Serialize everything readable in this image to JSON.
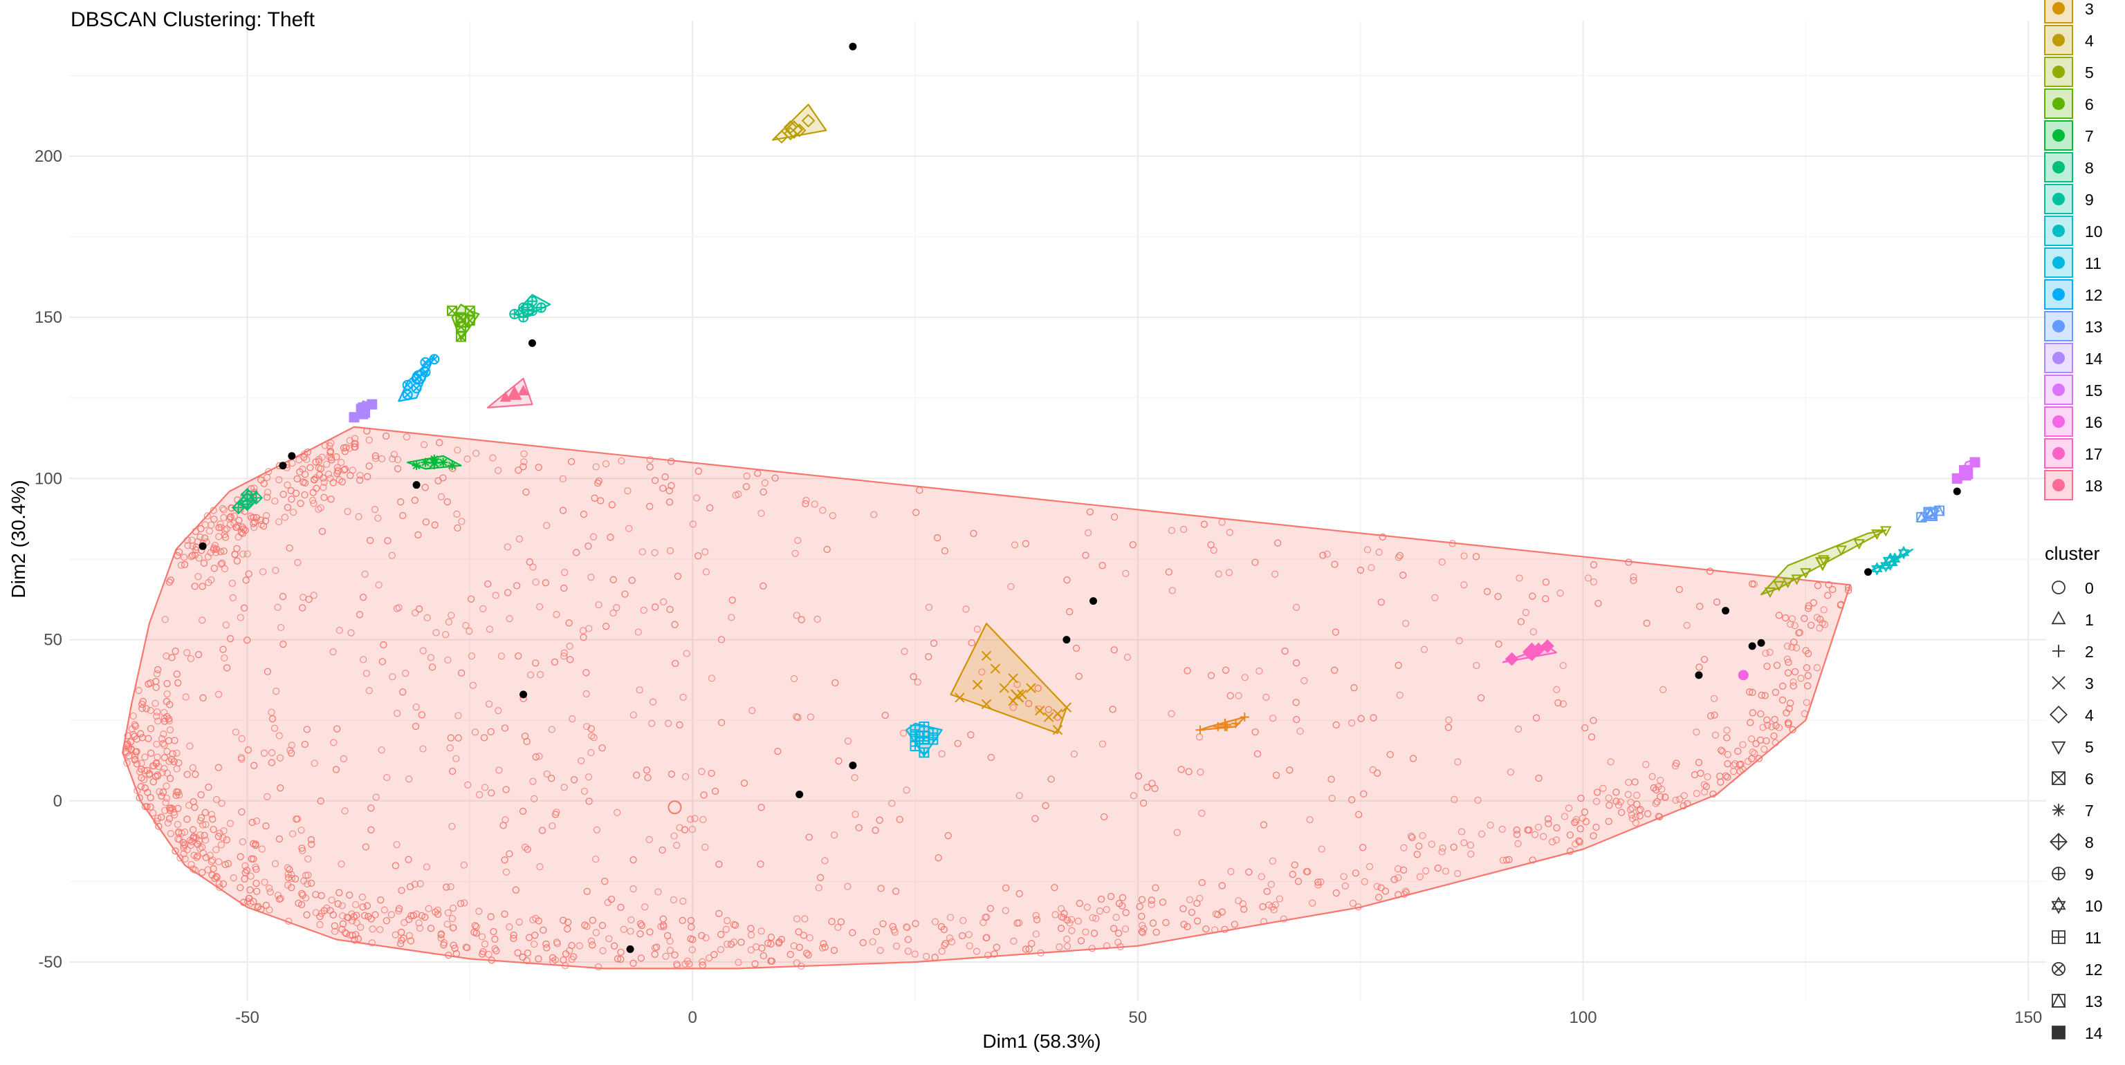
{
  "chart_data": {
    "type": "scatter",
    "title": "DBSCAN Clustering: Theft",
    "xlabel": "Dim1 (58.3%)",
    "ylabel": "Dim2 (30.4%)",
    "xlim": [
      -70,
      152
    ],
    "ylim": [
      -62,
      242
    ],
    "x_ticks": [
      -50,
      0,
      50,
      100,
      150
    ],
    "y_ticks": [
      -50,
      0,
      50,
      100,
      150,
      200
    ],
    "grid": true,
    "legend_position": "right",
    "cluster_colors": {
      "1": "#F8766D",
      "2": "#E7861B",
      "3": "#D39200",
      "4": "#BB9D00",
      "5": "#93AA00",
      "6": "#5EB300",
      "7": "#00BA38",
      "8": "#00BF74",
      "9": "#00C19F",
      "10": "#00BFC4",
      "11": "#00B9E3",
      "12": "#00ADFA",
      "13": "#619CFF",
      "14": "#AE87FF",
      "15": "#DB72FB",
      "16": "#F564E3",
      "17": "#FF61C3",
      "18": "#FF6C91"
    },
    "fill_legend": {
      "title": "",
      "entries": [
        {
          "label": "3",
          "color": "#D39200"
        },
        {
          "label": "4",
          "color": "#BB9D00"
        },
        {
          "label": "5",
          "color": "#93AA00"
        },
        {
          "label": "6",
          "color": "#5EB300"
        },
        {
          "label": "7",
          "color": "#00BA38"
        },
        {
          "label": "8",
          "color": "#00BF74"
        },
        {
          "label": "9",
          "color": "#00C19F"
        },
        {
          "label": "10",
          "color": "#00BFC4"
        },
        {
          "label": "11",
          "color": "#00B9E3"
        },
        {
          "label": "12",
          "color": "#00ADFA"
        },
        {
          "label": "13",
          "color": "#619CFF"
        },
        {
          "label": "14",
          "color": "#AE87FF"
        },
        {
          "label": "15",
          "color": "#DB72FB"
        },
        {
          "label": "16",
          "color": "#F564E3"
        },
        {
          "label": "17",
          "color": "#FF61C3"
        },
        {
          "label": "18",
          "color": "#FF6C91"
        }
      ]
    },
    "shape_legend": {
      "title": "cluster",
      "entries": [
        {
          "label": "0",
          "shape": "circle-open"
        },
        {
          "label": "1",
          "shape": "triangle-open"
        },
        {
          "label": "2",
          "shape": "plus"
        },
        {
          "label": "3",
          "shape": "cross"
        },
        {
          "label": "4",
          "shape": "diamond-open"
        },
        {
          "label": "5",
          "shape": "triangle-down-open"
        },
        {
          "label": "6",
          "shape": "square-cross"
        },
        {
          "label": "7",
          "shape": "asterisk"
        },
        {
          "label": "8",
          "shape": "diamond-plus"
        },
        {
          "label": "9",
          "shape": "circle-plus"
        },
        {
          "label": "10",
          "shape": "star-of-david"
        },
        {
          "label": "11",
          "shape": "square-plus"
        },
        {
          "label": "12",
          "shape": "circle-cross"
        },
        {
          "label": "13",
          "shape": "square-triangle"
        },
        {
          "label": "14",
          "shape": "square-filled"
        }
      ]
    },
    "hulls": [
      {
        "cluster": 1,
        "color": "#F8766D",
        "points": [
          [
            -63,
            30
          ],
          [
            -64,
            15
          ],
          [
            -62,
            0
          ],
          [
            -57,
            -20
          ],
          [
            -50,
            -33
          ],
          [
            -40,
            -43
          ],
          [
            -25,
            -49
          ],
          [
            -10,
            -52
          ],
          [
            5,
            -52
          ],
          [
            25,
            -50
          ],
          [
            50,
            -45
          ],
          [
            75,
            -33
          ],
          [
            100,
            -15
          ],
          [
            115,
            2
          ],
          [
            125,
            25
          ],
          [
            130,
            67
          ],
          [
            -38,
            116
          ],
          [
            -52,
            96
          ],
          [
            -58,
            78
          ],
          [
            -61,
            55
          ]
        ]
      },
      {
        "cluster": 2,
        "color": "#E7861B",
        "points": [
          [
            57,
            22
          ],
          [
            61,
            23
          ],
          [
            62,
            26
          ],
          [
            58,
            23
          ]
        ]
      },
      {
        "cluster": 3,
        "color": "#D39200",
        "points": [
          [
            29,
            33
          ],
          [
            33,
            55
          ],
          [
            42,
            29
          ],
          [
            41,
            21
          ]
        ]
      },
      {
        "cluster": 4,
        "color": "#BB9D00",
        "points": [
          [
            9,
            205
          ],
          [
            13,
            216
          ],
          [
            15,
            208
          ]
        ]
      },
      {
        "cluster": 5,
        "color": "#93AA00",
        "points": [
          [
            120,
            64
          ],
          [
            123,
            73
          ],
          [
            132,
            83
          ],
          [
            134,
            84
          ],
          [
            122,
            66
          ]
        ]
      },
      {
        "cluster": 6,
        "color": "#5EB300",
        "points": [
          [
            -27,
            150
          ],
          [
            -26,
            154
          ],
          [
            -25,
            152
          ],
          [
            -24,
            151
          ],
          [
            -26,
            143
          ]
        ]
      },
      {
        "cluster": 7,
        "color": "#00BA38",
        "points": [
          [
            -32,
            105
          ],
          [
            -28,
            107
          ],
          [
            -26,
            104
          ],
          [
            -30,
            103
          ]
        ]
      },
      {
        "cluster": 8,
        "color": "#00BF74",
        "points": [
          [
            -51,
            92
          ],
          [
            -50,
            96
          ],
          [
            -49,
            96
          ],
          [
            -50,
            91
          ]
        ]
      },
      {
        "cluster": 9,
        "color": "#00C19F",
        "points": [
          [
            -20,
            151
          ],
          [
            -18,
            157
          ],
          [
            -16,
            154
          ],
          [
            -19,
            150
          ]
        ]
      },
      {
        "cluster": 10,
        "color": "#00BFC4",
        "points": [
          [
            132,
            71
          ],
          [
            135,
            75
          ],
          [
            137,
            78
          ],
          [
            136,
            76
          ]
        ]
      },
      {
        "cluster": 11,
        "color": "#00B9E3",
        "points": [
          [
            24,
            22
          ],
          [
            26,
            14
          ],
          [
            28,
            22
          ],
          [
            25,
            24
          ]
        ]
      },
      {
        "cluster": 12,
        "color": "#00ADFA",
        "points": [
          [
            -33,
            124
          ],
          [
            -32,
            130
          ],
          [
            -29,
            138
          ],
          [
            -31,
            125
          ]
        ]
      },
      {
        "cluster": 13,
        "color": "#619CFF",
        "points": [
          [
            138,
            87
          ],
          [
            140,
            90
          ],
          [
            139,
            88
          ]
        ]
      },
      {
        "cluster": 14,
        "color": "#AE87FF",
        "points": [
          [
            -38,
            119
          ],
          [
            -37,
            124
          ],
          [
            -36,
            123
          ],
          [
            -38,
            118
          ]
        ]
      },
      {
        "cluster": 15,
        "color": "#DB72FB",
        "points": [
          [
            142,
            99
          ],
          [
            143,
            105
          ],
          [
            144,
            106
          ],
          [
            143,
            100
          ]
        ]
      },
      {
        "cluster": 17,
        "color": "#FF61C3",
        "points": [
          [
            91,
            43
          ],
          [
            94,
            46
          ],
          [
            96,
            48
          ],
          [
            97,
            46
          ]
        ]
      },
      {
        "cluster": 18,
        "color": "#FF6C91",
        "points": [
          [
            -23,
            122
          ],
          [
            -19,
            131
          ],
          [
            -18,
            123
          ]
        ]
      }
    ],
    "clusters": [
      {
        "cluster": 2,
        "shape": "plus",
        "color": "#E7861B",
        "points": [
          [
            57,
            22
          ],
          [
            59,
            23
          ],
          [
            61,
            24
          ],
          [
            62,
            26
          ],
          [
            60,
            23
          ]
        ]
      },
      {
        "cluster": 3,
        "shape": "cross",
        "color": "#D39200",
        "points": [
          [
            30,
            32
          ],
          [
            32,
            36
          ],
          [
            33,
            45
          ],
          [
            34,
            41
          ],
          [
            35,
            35
          ],
          [
            36,
            38
          ],
          [
            37,
            33
          ],
          [
            38,
            35
          ],
          [
            39,
            28
          ],
          [
            40,
            26
          ],
          [
            41,
            27
          ],
          [
            42,
            29
          ],
          [
            41,
            22
          ],
          [
            33,
            30
          ],
          [
            36,
            31
          ]
        ]
      },
      {
        "cluster": 4,
        "shape": "diamond-open",
        "color": "#BB9D00",
        "points": [
          [
            10,
            206
          ],
          [
            11,
            207
          ],
          [
            12,
            208
          ],
          [
            13,
            211
          ],
          [
            11,
            209
          ]
        ]
      },
      {
        "cluster": 5,
        "shape": "triangle-down-open",
        "color": "#93AA00",
        "points": [
          [
            121,
            65
          ],
          [
            123,
            68
          ],
          [
            125,
            71
          ],
          [
            127,
            75
          ],
          [
            129,
            78
          ],
          [
            131,
            80
          ],
          [
            133,
            83
          ],
          [
            134,
            84
          ],
          [
            122,
            67
          ],
          [
            124,
            69
          ]
        ]
      },
      {
        "cluster": 6,
        "shape": "square-cross",
        "color": "#5EB300",
        "points": [
          [
            -26,
            144
          ],
          [
            -26,
            147
          ],
          [
            -26,
            150
          ],
          [
            -27,
            152
          ],
          [
            -25,
            149
          ],
          [
            -25,
            152
          ]
        ]
      },
      {
        "cluster": 7,
        "shape": "asterisk",
        "color": "#00BA38",
        "points": [
          [
            -31,
            104
          ],
          [
            -30,
            105
          ],
          [
            -29,
            106
          ],
          [
            -28,
            105
          ],
          [
            -27,
            104
          ]
        ]
      },
      {
        "cluster": 8,
        "shape": "diamond-plus",
        "color": "#00BF74",
        "points": [
          [
            -50,
            92
          ],
          [
            -50,
            95
          ],
          [
            -49,
            94
          ],
          [
            -51,
            91
          ]
        ]
      },
      {
        "cluster": 9,
        "shape": "circle-plus",
        "color": "#00C19F",
        "points": [
          [
            -20,
            151
          ],
          [
            -19,
            153
          ],
          [
            -18,
            155
          ],
          [
            -17,
            153
          ],
          [
            -18,
            152
          ],
          [
            -19,
            150
          ]
        ]
      },
      {
        "cluster": 10,
        "shape": "star-of-david",
        "color": "#00BFC4",
        "points": [
          [
            133,
            72
          ],
          [
            134,
            73
          ],
          [
            135,
            75
          ],
          [
            136,
            77
          ]
        ]
      },
      {
        "cluster": 11,
        "shape": "square-plus",
        "color": "#00B9E3",
        "points": [
          [
            25,
            22
          ],
          [
            25,
            17
          ],
          [
            26,
            20
          ],
          [
            26,
            15
          ],
          [
            27,
            21
          ],
          [
            27,
            19
          ],
          [
            26,
            23
          ],
          [
            25,
            20
          ]
        ]
      },
      {
        "cluster": 12,
        "shape": "circle-cross",
        "color": "#00ADFA",
        "points": [
          [
            -32,
            126
          ],
          [
            -31,
            128
          ],
          [
            -31,
            131
          ],
          [
            -30,
            133
          ],
          [
            -30,
            136
          ],
          [
            -29,
            137
          ],
          [
            -32,
            129
          ]
        ]
      },
      {
        "cluster": 13,
        "shape": "square-triangle",
        "color": "#619CFF",
        "points": [
          [
            138,
            88
          ],
          [
            139,
            89
          ],
          [
            140,
            90
          ]
        ]
      },
      {
        "cluster": 14,
        "shape": "square-filled",
        "color": "#AE87FF",
        "points": [
          [
            -37,
            120
          ],
          [
            -37,
            122
          ],
          [
            -36,
            123
          ],
          [
            -38,
            119
          ]
        ]
      },
      {
        "cluster": 15,
        "shape": "square-filled",
        "color": "#DB72FB",
        "points": [
          [
            142,
            100
          ],
          [
            143,
            102
          ],
          [
            144,
            105
          ],
          [
            143,
            101
          ]
        ]
      },
      {
        "cluster": 16,
        "shape": "circle-filled",
        "color": "#F564E3",
        "points": [
          [
            118,
            39
          ]
        ]
      },
      {
        "cluster": 17,
        "shape": "diamond-filled",
        "color": "#FF61C3",
        "points": [
          [
            92,
            44
          ],
          [
            94,
            46
          ],
          [
            95,
            47
          ],
          [
            96,
            48
          ]
        ]
      },
      {
        "cluster": 18,
        "shape": "triangle-filled",
        "color": "#FF6C91",
        "points": [
          [
            -20,
            126
          ],
          [
            -19,
            127
          ],
          [
            -21,
            125
          ]
        ]
      }
    ],
    "noise_points": {
      "cluster": 0,
      "color": "#000000",
      "points": [
        [
          18,
          234
        ],
        [
          -18,
          142
        ],
        [
          -45,
          107
        ],
        [
          -46,
          104
        ],
        [
          -31,
          98
        ],
        [
          -55,
          79
        ],
        [
          45,
          62
        ],
        [
          42,
          50
        ],
        [
          -19,
          33
        ],
        [
          18,
          11
        ],
        [
          12,
          2
        ],
        [
          -7,
          -46
        ],
        [
          116,
          59
        ],
        [
          120,
          49
        ],
        [
          119,
          48
        ],
        [
          113,
          39
        ],
        [
          142,
          96
        ],
        [
          132,
          71
        ]
      ]
    }
  }
}
